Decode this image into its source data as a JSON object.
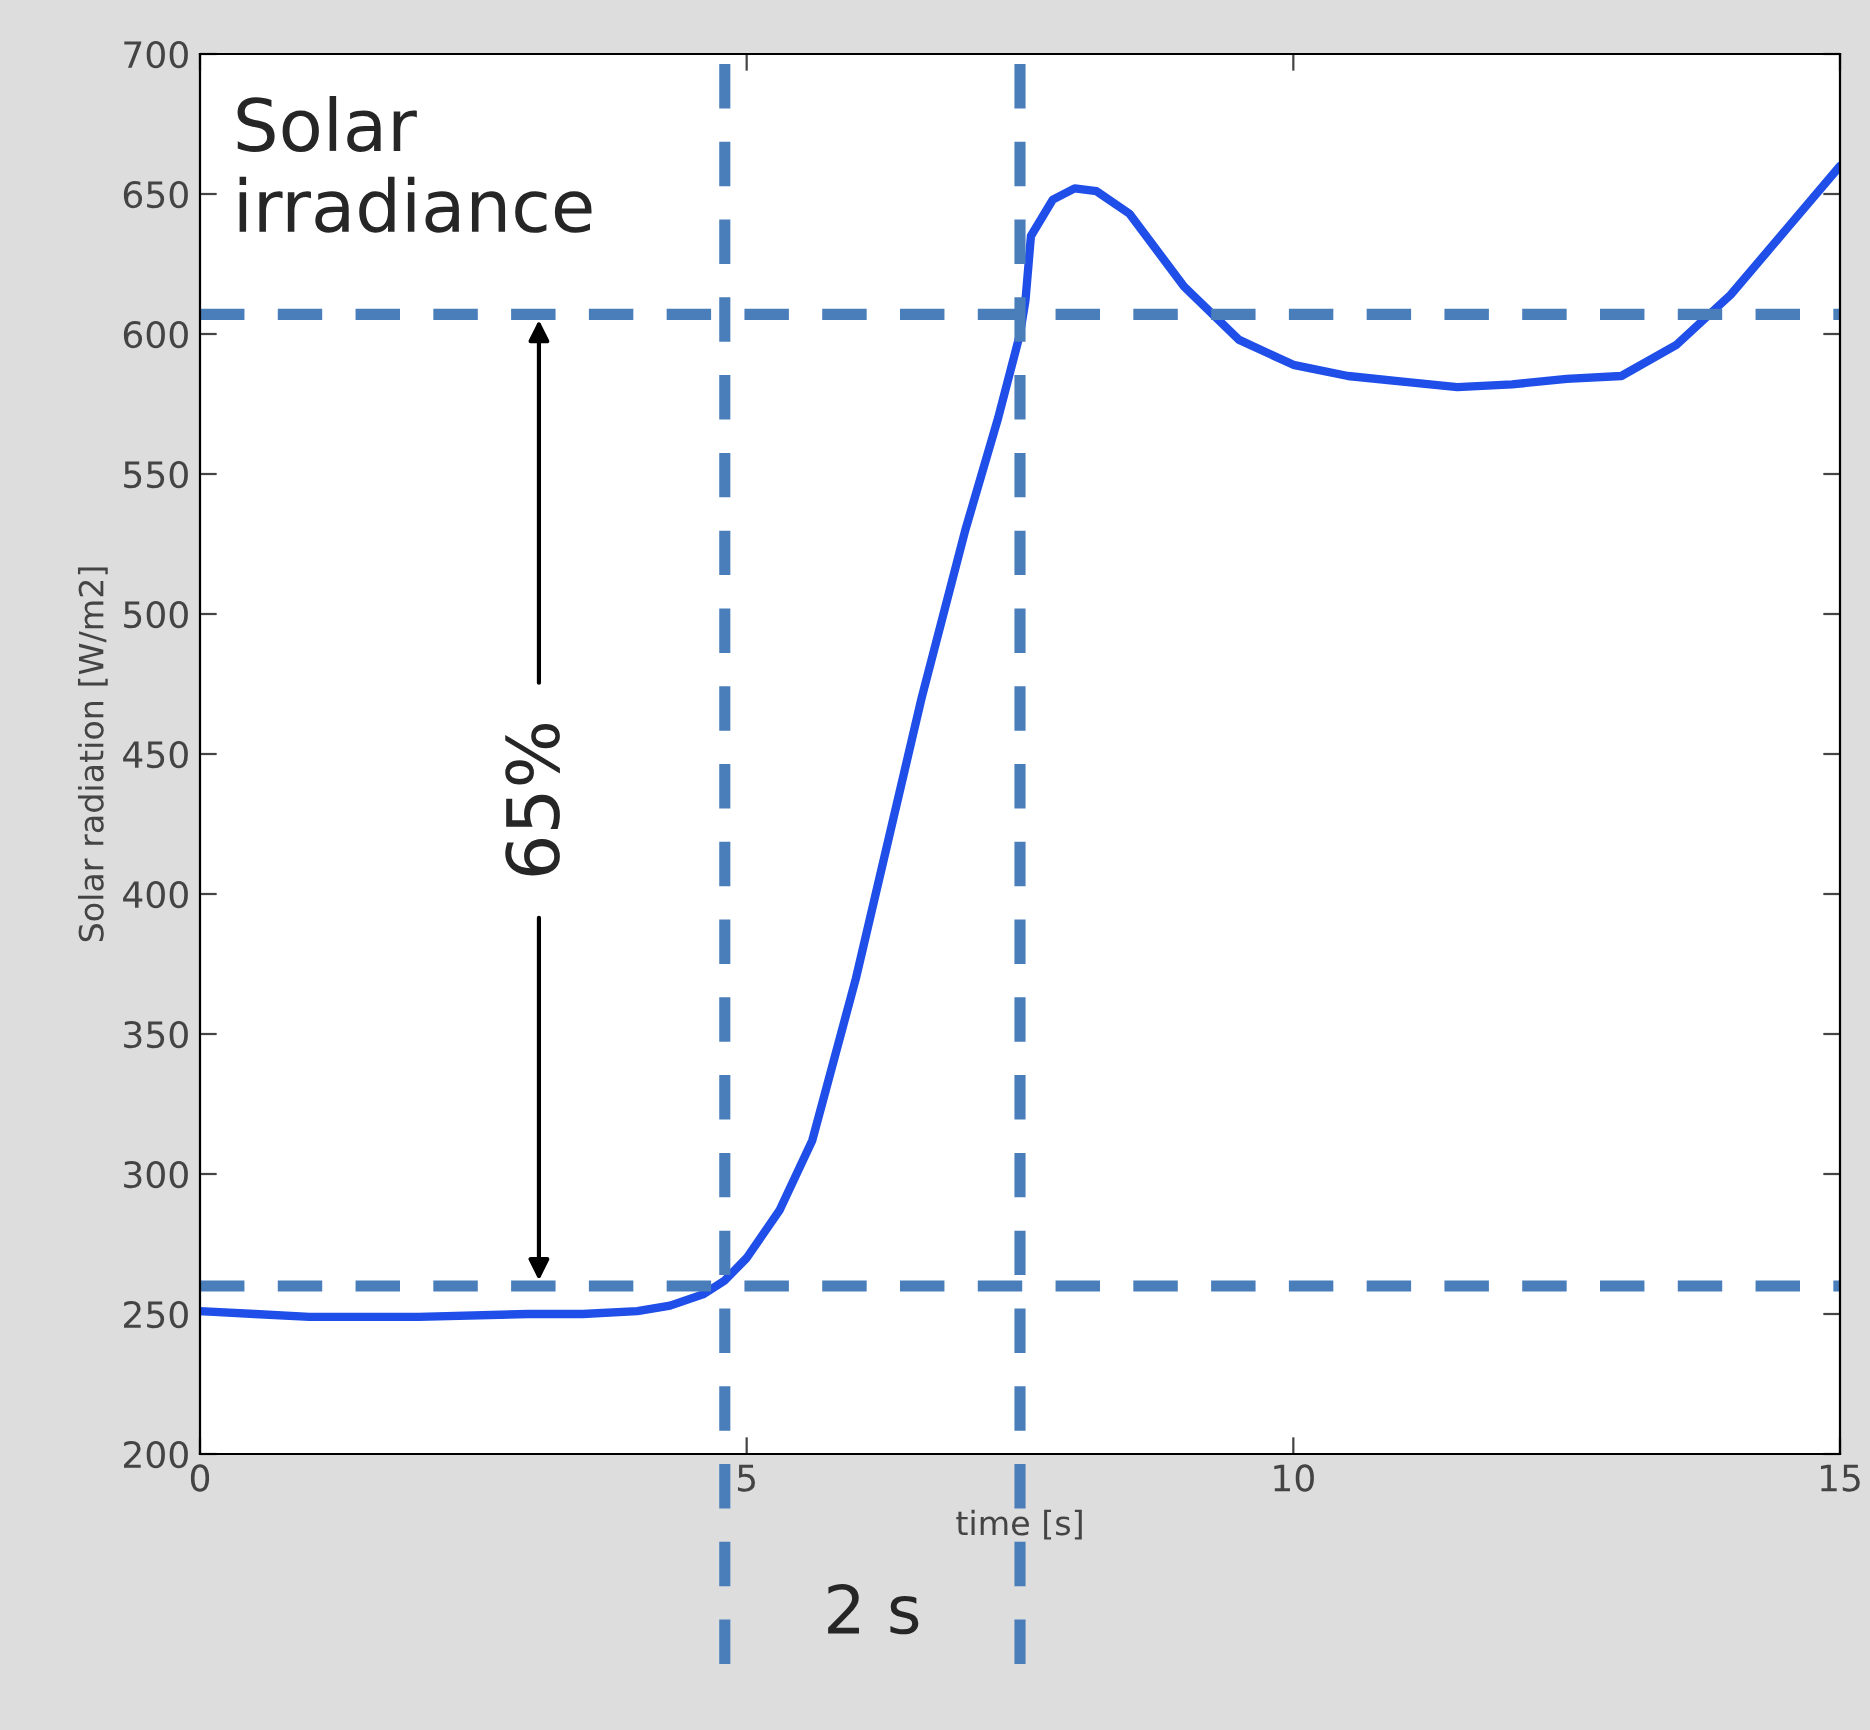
{
  "chart_data": {
    "type": "line",
    "xlabel": "time [s]",
    "ylabel": "Solar radiation [W/m2]",
    "x": [
      0,
      0.5,
      1,
      2,
      3,
      3.5,
      4,
      4.3,
      4.6,
      4.8,
      5,
      5.3,
      5.6,
      6,
      6.3,
      6.6,
      7,
      7.3,
      7.5,
      7.55,
      7.6,
      7.8,
      8,
      8.2,
      8.5,
      9,
      9.5,
      10,
      10.5,
      11,
      11.5,
      12,
      12.5,
      13,
      13.5,
      14,
      14.5,
      15
    ],
    "series": [
      {
        "color": "#1f4fe8",
        "values": [
          251,
          250,
          249,
          249,
          250,
          250,
          251,
          253,
          257,
          262,
          270,
          287,
          312,
          370,
          420,
          470,
          530,
          570,
          600,
          612,
          635,
          648,
          652,
          651,
          643,
          617,
          598,
          589,
          585,
          583,
          581,
          582,
          584,
          585,
          596,
          614,
          637,
          660
        ]
      }
    ],
    "xlim": [
      0,
      15
    ],
    "ylim": [
      200,
      700
    ],
    "xticks": [
      0,
      5,
      10,
      15
    ],
    "yticks": [
      200,
      250,
      300,
      350,
      400,
      450,
      500,
      550,
      600,
      650,
      700
    ],
    "grid": false,
    "marker": "none",
    "line_style": "solid",
    "ref_lines": [
      {
        "axis": "y",
        "value": 260,
        "color": "#4a7ebb",
        "line_style": "dashed"
      },
      {
        "axis": "y",
        "value": 607,
        "color": "#4a7ebb",
        "line_style": "dashed"
      },
      {
        "axis": "x",
        "value": 4.8,
        "color": "#4a7ebb",
        "line_style": "dashed"
      },
      {
        "axis": "x",
        "value": 7.5,
        "color": "#4a7ebb",
        "line_style": "dashed"
      }
    ],
    "annotations": [
      "Solar\nirradiance",
      "65%",
      "2 s"
    ]
  }
}
